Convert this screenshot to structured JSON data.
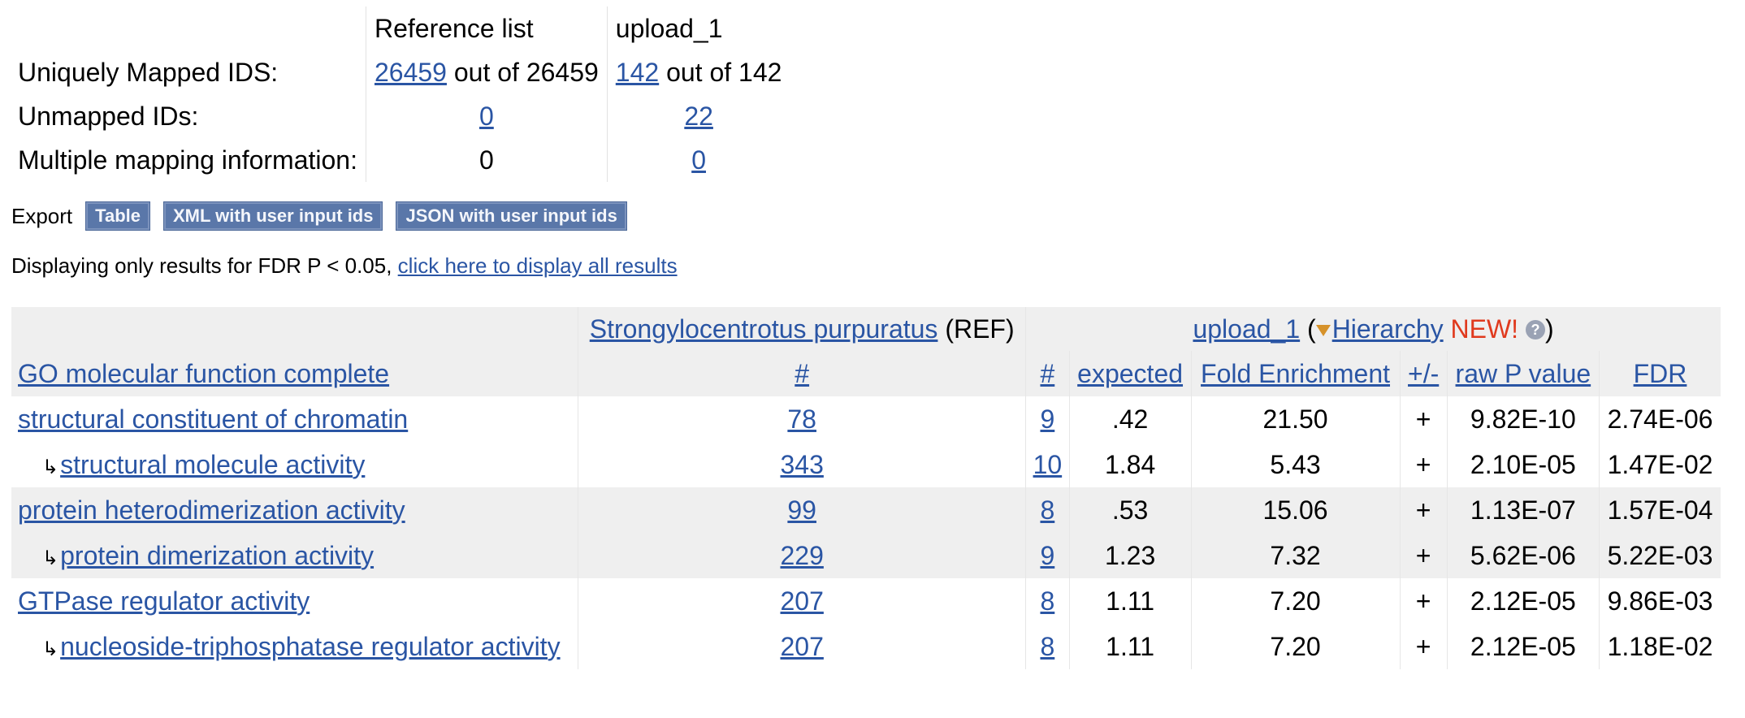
{
  "summary": {
    "col_ref": "Reference list",
    "col_upload": "upload_1",
    "rows": [
      {
        "label": "Uniquely Mapped IDS:",
        "ref_link": "26459",
        "ref_rest": " out of 26459",
        "up_link": "142",
        "up_rest": " out of 142"
      },
      {
        "label": "Unmapped IDs:",
        "ref_link": "0",
        "up_link": "22"
      },
      {
        "label": "Multiple mapping information:",
        "ref_value": "0",
        "up_link": "0"
      }
    ]
  },
  "export": {
    "label": "Export",
    "buttons": [
      "Table",
      "XML with user input ids",
      "JSON with user input ids"
    ]
  },
  "notice": {
    "text": "Displaying only results for FDR P < 0.05, ",
    "link": "click here to display all results"
  },
  "results": {
    "ref_species": "Strongylocentrotus purpuratus",
    "ref_suffix": " (REF)",
    "upload_name": "upload_1",
    "hierarchy": "Hierarchy",
    "new_badge": "NEW!",
    "help_glyph": "?",
    "columns": [
      "GO molecular function complete",
      "#",
      "#",
      "expected",
      "Fold Enrichment",
      "+/-",
      "raw P value",
      "FDR"
    ],
    "rows": [
      {
        "term": "structural constituent of chromatin",
        "child": false,
        "ref": "78",
        "n": "9",
        "expected": ".42",
        "fold": "21.50",
        "sign": "+",
        "p": "9.82E-10",
        "fdr": "2.74E-06"
      },
      {
        "term": "structural molecule activity",
        "child": true,
        "ref": "343",
        "n": "10",
        "expected": "1.84",
        "fold": "5.43",
        "sign": "+",
        "p": "2.10E-05",
        "fdr": "1.47E-02"
      },
      {
        "term": "protein heterodimerization activity",
        "child": false,
        "ref": "99",
        "n": "8",
        "expected": ".53",
        "fold": "15.06",
        "sign": "+",
        "p": "1.13E-07",
        "fdr": "1.57E-04"
      },
      {
        "term": "protein dimerization activity",
        "child": true,
        "ref": "229",
        "n": "9",
        "expected": "1.23",
        "fold": "7.32",
        "sign": "+",
        "p": "5.62E-06",
        "fdr": "5.22E-03"
      },
      {
        "term": "GTPase regulator activity",
        "child": false,
        "ref": "207",
        "n": "8",
        "expected": "1.11",
        "fold": "7.20",
        "sign": "+",
        "p": "2.12E-05",
        "fdr": "9.86E-03"
      },
      {
        "term": "nucleoside-triphosphatase regulator activity",
        "child": true,
        "ref": "207",
        "n": "8",
        "expected": "1.11",
        "fold": "7.20",
        "sign": "+",
        "p": "2.12E-05",
        "fdr": "1.18E-02"
      }
    ],
    "child_arrow": "↳"
  }
}
